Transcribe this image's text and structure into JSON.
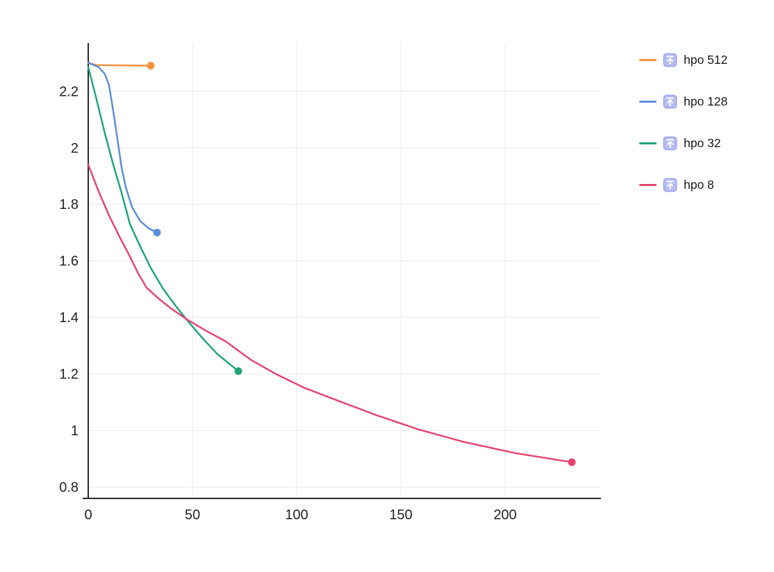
{
  "page": {
    "background": "#ffffff"
  },
  "chart_data": {
    "type": "line",
    "title": "",
    "xlabel": "",
    "ylabel": "",
    "xlim": [
      0,
      246
    ],
    "ylim": [
      0.76,
      2.37
    ],
    "x_ticks": [
      0,
      50,
      100,
      150,
      200
    ],
    "x_tick_labels": [
      "0",
      "50",
      "100",
      "150",
      "200"
    ],
    "y_ticks": [
      0.8,
      1,
      1.2,
      1.4,
      1.6,
      1.8,
      2,
      2.2
    ],
    "y_tick_labels": [
      "0.8",
      "1",
      "1.2",
      "1.4",
      "1.6",
      "1.8",
      "2",
      "2.2"
    ],
    "grid": true,
    "legend_position": "right",
    "series": [
      {
        "name": "hpo 512",
        "color": "#f5923e",
        "end_marker": true,
        "x": [
          0,
          4,
          30
        ],
        "y": [
          2.3,
          2.292,
          2.29
        ]
      },
      {
        "name": "hpo 128",
        "color": "#5b8fd9",
        "end_marker": true,
        "x": [
          0,
          5,
          8,
          10,
          12,
          14,
          16,
          18,
          21,
          25,
          29,
          33
        ],
        "y": [
          2.3,
          2.285,
          2.26,
          2.22,
          2.13,
          2.03,
          1.93,
          1.86,
          1.79,
          1.74,
          1.715,
          1.7
        ]
      },
      {
        "name": "hpo 32",
        "color": "#1fa47b",
        "end_marker": true,
        "x": [
          0,
          4,
          8,
          12,
          16,
          20,
          25,
          30,
          36,
          42,
          48,
          55,
          62,
          72
        ],
        "y": [
          2.285,
          2.17,
          2.05,
          1.94,
          1.84,
          1.73,
          1.65,
          1.575,
          1.5,
          1.44,
          1.385,
          1.325,
          1.27,
          1.21
        ]
      },
      {
        "name": "hpo 8",
        "color": "#e5466f",
        "end_marker": true,
        "x": [
          0,
          5,
          10,
          15,
          20,
          24,
          28,
          34,
          40,
          48,
          56,
          66,
          78,
          90,
          104,
          120,
          138,
          158,
          180,
          205,
          232
        ],
        "y": [
          1.94,
          1.845,
          1.76,
          1.685,
          1.615,
          1.555,
          1.505,
          1.465,
          1.43,
          1.39,
          1.355,
          1.315,
          1.25,
          1.2,
          1.15,
          1.105,
          1.055,
          1.005,
          0.96,
          0.92,
          0.888
        ]
      }
    ]
  },
  "legend": {
    "icon_name": "run-upload-icon",
    "icon_bg": "#b6bcf3",
    "icon_border": "#98a0ee",
    "icon_glyph_color": "#ffffff"
  },
  "style_colors": {
    "grid_line": "#e8e8e8",
    "axis_line": "#2b2b2b",
    "tick_text": "#222222"
  }
}
